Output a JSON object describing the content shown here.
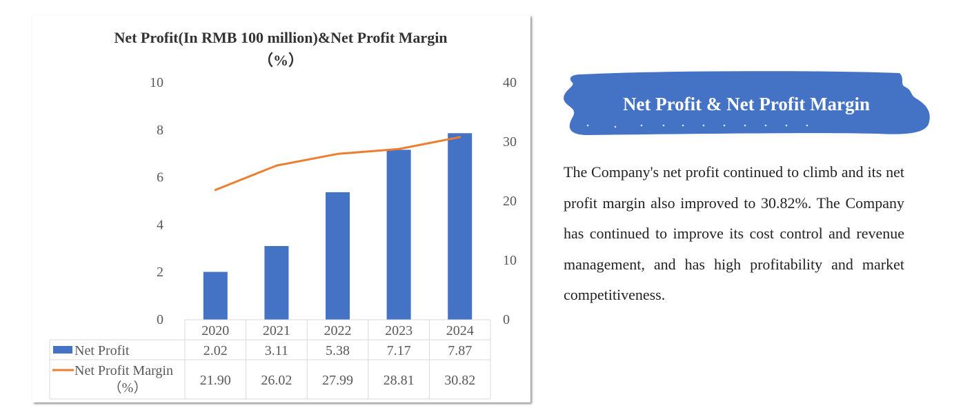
{
  "chart_data": {
    "type": "bar",
    "title": "Net Profit(In RMB 100 million)&Net Profit Margin",
    "title_line2": "（%）",
    "categories": [
      "2020",
      "2021",
      "2022",
      "2023",
      "2024"
    ],
    "series": [
      {
        "name": "Net Profit",
        "type": "bar",
        "axis": "left",
        "color": "#4472C4",
        "values": [
          2.02,
          3.11,
          5.38,
          7.17,
          7.87
        ]
      },
      {
        "name": "Net Profit Margin",
        "name_line2": "（%）",
        "type": "line",
        "axis": "right",
        "color": "#ED7D31",
        "values": [
          21.9,
          26.02,
          27.99,
          28.81,
          30.82
        ]
      }
    ],
    "y_left": {
      "min": 0,
      "max": 10,
      "ticks": [
        "0",
        "2",
        "4",
        "6",
        "8",
        "10"
      ]
    },
    "y_right": {
      "min": 0,
      "max": 40,
      "ticks": [
        "0",
        "10",
        "20",
        "30",
        "40"
      ]
    },
    "data_table": {
      "rows": [
        {
          "label": "Net Profit",
          "values": [
            "2.02",
            "3.11",
            "5.38",
            "7.17",
            "7.87"
          ]
        },
        {
          "label": "Net Profit Margin",
          "label_line2": "（%）",
          "values": [
            "21.90",
            "26.02",
            "27.99",
            "28.81",
            "30.82"
          ]
        }
      ]
    },
    "grid": false,
    "legend": "data-table"
  },
  "banner": {
    "title": "Net Profit & Net Profit Margin",
    "color": "#4472C4"
  },
  "description": "The Company's net profit continued to climb and its net profit margin also improved to 30.82%. The Company has continued to improve its cost control and revenue management, and has high profitability and market competitiveness."
}
